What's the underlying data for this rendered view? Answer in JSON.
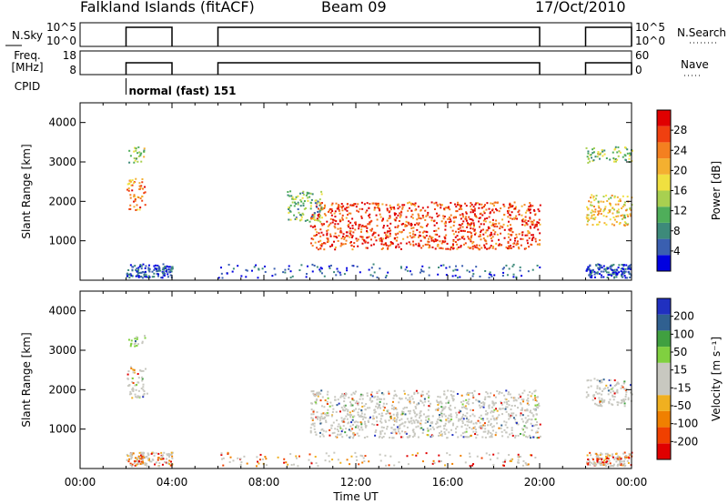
{
  "header": {
    "title": "Falkland Islands (fitACF)",
    "beam": "Beam 09",
    "date": "17/Oct/2010"
  },
  "top_panels": {
    "nsky": {
      "label": "N.Sky",
      "left_ticks": [
        "10^5",
        "10^0"
      ],
      "right_ticks": [
        "10^5",
        "10^0"
      ],
      "right_label": "N.Search"
    },
    "freq": {
      "label_line1": "Freq.",
      "label_line2": "[MHz]",
      "left_ticks": [
        "18",
        "8"
      ],
      "right_ticks": [
        "60",
        "0"
      ],
      "right_label": "Nave"
    },
    "cpid": {
      "label": "CPID",
      "mode": "normal (fast) 151"
    }
  },
  "chart_data": [
    {
      "type": "heatmap",
      "name": "power",
      "ylabel": "Slant Range [km]",
      "xlabel": "",
      "ylim": [
        0,
        4500
      ],
      "xlim": [
        0,
        24
      ],
      "yticks": [
        "1000",
        "2000",
        "3000",
        "4000"
      ],
      "colorbar": {
        "label": "Power [dB]",
        "ticks": [
          "28",
          "24",
          "20",
          "16",
          "12",
          "8",
          "4"
        ],
        "colors": [
          "#0000e0",
          "#3a5fb0",
          "#3d8a7a",
          "#4fae5a",
          "#a8d050",
          "#f0e040",
          "#f4b030",
          "#f48020",
          "#f04010",
          "#e00000"
        ]
      },
      "blobs": [
        {
          "t0": 2.0,
          "t1": 2.8,
          "r0": 1800,
          "r1": 2600,
          "level": 0.75
        },
        {
          "t0": 2.1,
          "t1": 2.9,
          "r0": 3000,
          "r1": 3400,
          "level": 0.4
        },
        {
          "t0": 10.0,
          "t1": 20.0,
          "r0": 800,
          "r1": 2000,
          "level": 0.9
        },
        {
          "t0": 9.0,
          "t1": 10.5,
          "r0": 1500,
          "r1": 2300,
          "level": 0.35
        },
        {
          "t0": 22.0,
          "t1": 24.0,
          "r0": 1400,
          "r1": 2200,
          "level": 0.6
        },
        {
          "t0": 22.0,
          "t1": 24.0,
          "r0": 3000,
          "r1": 3400,
          "level": 0.4
        }
      ]
    },
    {
      "type": "heatmap",
      "name": "velocity",
      "ylabel": "Slant Range [km]",
      "xlabel": "Time UT",
      "ylim": [
        0,
        4500
      ],
      "xlim": [
        0,
        24
      ],
      "yticks": [
        "1000",
        "2000",
        "3000",
        "4000"
      ],
      "xticks": [
        "00:00",
        "04:00",
        "08:00",
        "12:00",
        "16:00",
        "20:00",
        "00:00"
      ],
      "colorbar": {
        "label": "Velocity [m s⁻¹]",
        "ticks": [
          "200",
          "100",
          "50",
          "15",
          "-15",
          "-50",
          "-100",
          "-200"
        ],
        "colors": [
          "#e00000",
          "#f04000",
          "#f08000",
          "#f0b020",
          "#c8c8c0",
          "#c8c8c0",
          "#80d040",
          "#40a040",
          "#306090",
          "#2030c0"
        ]
      },
      "blobs": [
        {
          "t0": 2.0,
          "t1": 2.9,
          "r0": 1800,
          "r1": 2600,
          "level": 0.5
        },
        {
          "t0": 2.0,
          "t1": 2.8,
          "r0": 3100,
          "r1": 3400,
          "level": 0.65
        },
        {
          "t0": 10.0,
          "t1": 20.0,
          "r0": 800,
          "r1": 2000,
          "level": 0.5
        },
        {
          "t0": 22.0,
          "t1": 24.0,
          "r0": 1600,
          "r1": 2300,
          "level": 0.5
        }
      ]
    }
  ],
  "timeline_segments": [
    [
      2.0,
      4.0
    ],
    [
      6.0,
      20.0
    ],
    [
      22.0,
      24.0
    ]
  ],
  "colors": {
    "axis": "#000000",
    "grey_scatter": "#c8c8c0"
  }
}
